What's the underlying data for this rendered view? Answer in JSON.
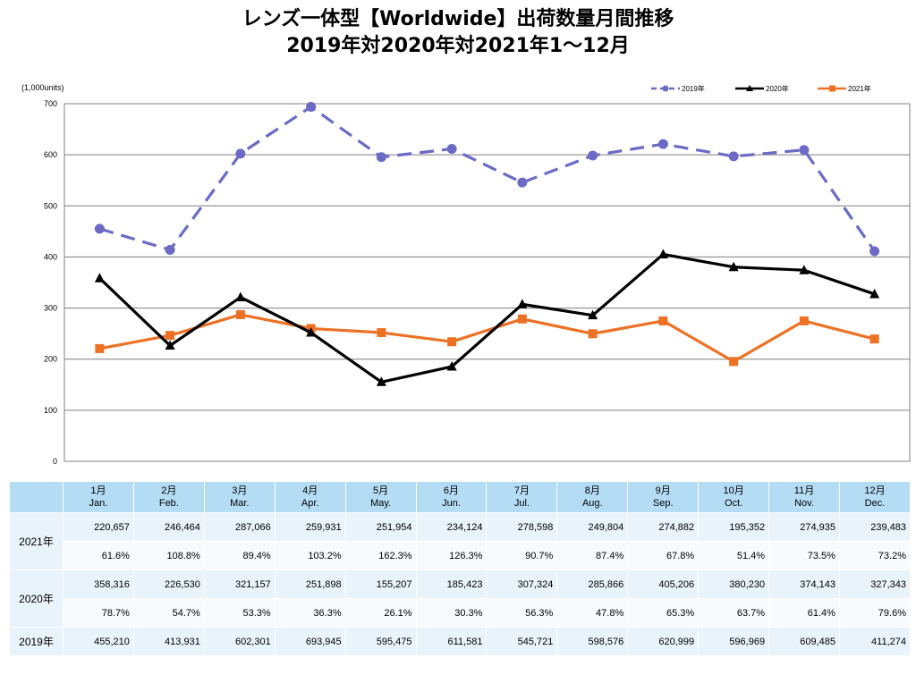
{
  "title_line1": "レンズ一体型【Worldwide】出荷数量月間推移",
  "title_line2": "2019年対2020年対2021年1～12月",
  "chart_data": {
    "type": "line",
    "unit_label": "(1,000units)",
    "ylim": [
      0,
      700
    ],
    "yticks": [
      0,
      100,
      200,
      300,
      400,
      500,
      600,
      700
    ],
    "categories": [
      "1月",
      "2月",
      "3月",
      "4月",
      "5月",
      "6月",
      "7月",
      "8月",
      "9月",
      "10月",
      "11月",
      "12月"
    ],
    "legend_position": "top-right",
    "series": [
      {
        "name": "2019年",
        "color": "#6b6bc6",
        "style": "dashed",
        "marker": "circle",
        "values": [
          455.21,
          413.931,
          602.301,
          693.945,
          595.475,
          611.581,
          545.721,
          598.576,
          620.999,
          596.969,
          609.485,
          411.274
        ]
      },
      {
        "name": "2020年",
        "color": "#000000",
        "style": "solid",
        "marker": "triangle",
        "values": [
          358.316,
          226.53,
          321.157,
          251.898,
          155.207,
          185.423,
          307.324,
          285.866,
          405.206,
          380.23,
          374.143,
          327.343
        ]
      },
      {
        "name": "2021年",
        "color": "#ed7125",
        "style": "solid",
        "marker": "square",
        "values": [
          220.657,
          246.464,
          287.066,
          259.931,
          251.954,
          234.124,
          278.598,
          249.804,
          274.882,
          195.352,
          274.935,
          239.483
        ]
      }
    ]
  },
  "table": {
    "months": [
      {
        "jp": "1月",
        "en": "Jan."
      },
      {
        "jp": "2月",
        "en": "Feb."
      },
      {
        "jp": "3月",
        "en": "Mar."
      },
      {
        "jp": "4月",
        "en": "Apr."
      },
      {
        "jp": "5月",
        "en": "May."
      },
      {
        "jp": "6月",
        "en": "Jun."
      },
      {
        "jp": "7月",
        "en": "Jul."
      },
      {
        "jp": "8月",
        "en": "Aug."
      },
      {
        "jp": "9月",
        "en": "Sep."
      },
      {
        "jp": "10月",
        "en": "Oct."
      },
      {
        "jp": "11月",
        "en": "Nov."
      },
      {
        "jp": "12月",
        "en": "Dec."
      }
    ],
    "rows": [
      {
        "year": "2021年",
        "units": [
          "220,657",
          "246,464",
          "287,066",
          "259,931",
          "251,954",
          "234,124",
          "278,598",
          "249,804",
          "274,882",
          "195,352",
          "274,935",
          "239,483"
        ],
        "pct": [
          "61.6%",
          "108.8%",
          "89.4%",
          "103.2%",
          "162.3%",
          "126.3%",
          "90.7%",
          "87.4%",
          "67.8%",
          "51.4%",
          "73.5%",
          "73.2%"
        ]
      },
      {
        "year": "2020年",
        "units": [
          "358,316",
          "226,530",
          "321,157",
          "251,898",
          "155,207",
          "185,423",
          "307,324",
          "285,866",
          "405,206",
          "380,230",
          "374,143",
          "327,343"
        ],
        "pct": [
          "78.7%",
          "54.7%",
          "53.3%",
          "36.3%",
          "26.1%",
          "30.3%",
          "56.3%",
          "47.8%",
          "65.3%",
          "63.7%",
          "61.4%",
          "79.6%"
        ]
      },
      {
        "year": "2019年",
        "units": [
          "455,210",
          "413,931",
          "602,301",
          "693,945",
          "595,475",
          "611,581",
          "545,721",
          "598,576",
          "620,999",
          "596,969",
          "609,485",
          "411,274"
        ]
      }
    ]
  }
}
